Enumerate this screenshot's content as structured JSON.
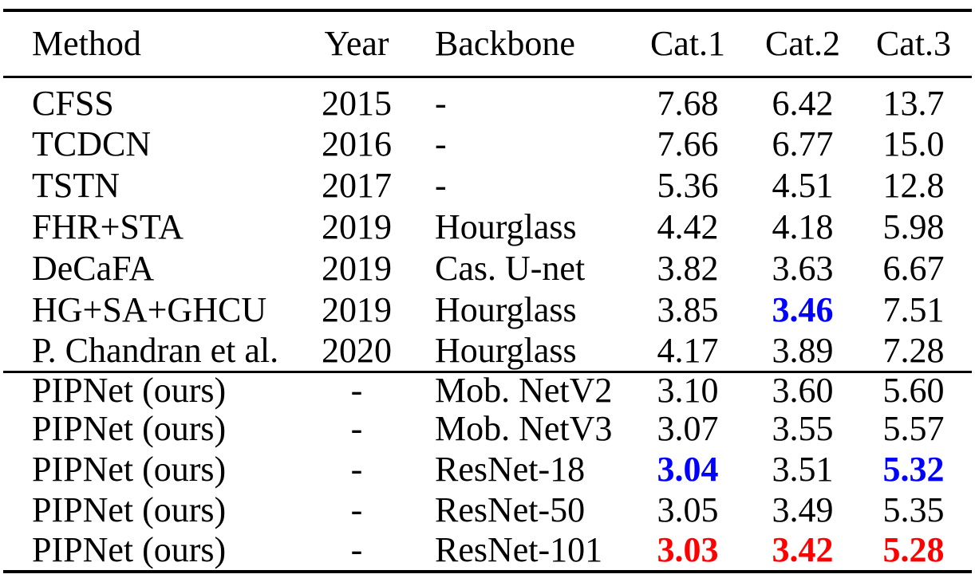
{
  "table": {
    "headers": [
      "Method",
      "Year",
      "Backbone",
      "Cat.1",
      "Cat.2",
      "Cat.3"
    ],
    "groups": [
      {
        "name": "prior-methods",
        "rows": [
          {
            "method": "CFSS",
            "year": "2015",
            "backbone": "-",
            "values": [
              {
                "text": "7.68"
              },
              {
                "text": "6.42"
              },
              {
                "text": "13.7"
              }
            ]
          },
          {
            "method": "TCDCN",
            "year": "2016",
            "backbone": "-",
            "values": [
              {
                "text": "7.66"
              },
              {
                "text": "6.77"
              },
              {
                "text": "15.0"
              }
            ]
          },
          {
            "method": "TSTN",
            "year": "2017",
            "backbone": "-",
            "values": [
              {
                "text": "5.36"
              },
              {
                "text": "4.51"
              },
              {
                "text": "12.8"
              }
            ]
          },
          {
            "method": "FHR+STA",
            "year": "2019",
            "backbone": "Hourglass",
            "values": [
              {
                "text": "4.42"
              },
              {
                "text": "4.18"
              },
              {
                "text": "5.98"
              }
            ]
          },
          {
            "method": "DeCaFA",
            "year": "2019",
            "backbone": "Cas. U-net",
            "values": [
              {
                "text": "3.82"
              },
              {
                "text": "3.63"
              },
              {
                "text": "6.67"
              }
            ]
          },
          {
            "method": "HG+SA+GHCU",
            "year": "2019",
            "backbone": "Hourglass",
            "values": [
              {
                "text": "3.85"
              },
              {
                "text": "3.46",
                "highlight": "second_best"
              },
              {
                "text": "7.51"
              }
            ]
          },
          {
            "method": "P. Chandran et al.",
            "year": "2020",
            "backbone": "Hourglass",
            "values": [
              {
                "text": "4.17"
              },
              {
                "text": "3.89"
              },
              {
                "text": "7.28"
              }
            ]
          }
        ]
      },
      {
        "name": "pipnet-ours",
        "rows": [
          {
            "method": "PIPNet (ours)",
            "year": "-",
            "backbone": "Mob. NetV2",
            "values": [
              {
                "text": "3.10"
              },
              {
                "text": "3.60"
              },
              {
                "text": "5.60"
              }
            ]
          },
          {
            "method": "PIPNet (ours)",
            "year": "-",
            "backbone": "Mob. NetV3",
            "values": [
              {
                "text": "3.07"
              },
              {
                "text": "3.55"
              },
              {
                "text": "5.57"
              }
            ]
          },
          {
            "method": "PIPNet (ours)",
            "year": "-",
            "backbone": "ResNet-18",
            "values": [
              {
                "text": "3.04",
                "highlight": "second_best"
              },
              {
                "text": "3.51"
              },
              {
                "text": "5.32",
                "highlight": "second_best"
              }
            ]
          },
          {
            "method": "PIPNet (ours)",
            "year": "-",
            "backbone": "ResNet-50",
            "values": [
              {
                "text": "3.05"
              },
              {
                "text": "3.49"
              },
              {
                "text": "5.35"
              }
            ]
          },
          {
            "method": "PIPNet (ours)",
            "year": "-",
            "backbone": "ResNet-101",
            "values": [
              {
                "text": "3.03",
                "highlight": "best"
              },
              {
                "text": "3.42",
                "highlight": "best"
              },
              {
                "text": "5.28",
                "highlight": "best"
              }
            ]
          }
        ]
      }
    ]
  },
  "colors": {
    "text": "#000000",
    "rule": "#000000",
    "best": "#ff0000",
    "second_best": "#0000ff"
  }
}
